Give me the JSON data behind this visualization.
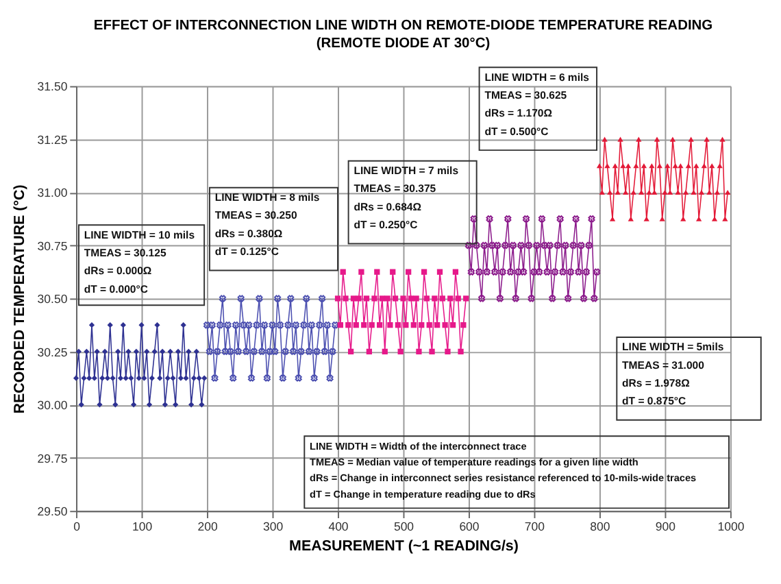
{
  "chart_data": {
    "type": "line",
    "title": "EFFECT OF INTERCONNECTION LINE WIDTH ON REMOTE-DIODE TEMPERATURE READING",
    "subtitle": "(REMOTE DIODE AT 30°C)",
    "xlabel": "MEASUREMENT (~1 READING/s)",
    "ylabel": "RECORDED TEMPERATURE (°C)",
    "xlim": [
      0,
      1000
    ],
    "xticks": [
      0,
      100,
      200,
      300,
      400,
      500,
      600,
      700,
      800,
      900,
      1000
    ],
    "ylim": [
      29.5,
      31.5
    ],
    "yticks": [
      {
        "value": 29.5,
        "label": "29.50"
      },
      {
        "value": 29.75,
        "label": "29.75"
      },
      {
        "value": 30,
        "label": "30.00"
      },
      {
        "value": 30.25,
        "label": "30.25"
      },
      {
        "value": 30.5,
        "label": "30.50"
      },
      {
        "value": 30.75,
        "label": "30.75"
      },
      {
        "value": 31,
        "label": "31.00"
      },
      {
        "value": 31.25,
        "label": "31.25"
      },
      {
        "value": 31.5,
        "label": "31.50"
      }
    ],
    "grid": true,
    "line_style": "solid",
    "series": [
      {
        "color": "#2e3192",
        "marker": "diamond",
        "x": [
          0,
          4,
          8,
          12,
          16,
          20,
          24,
          28,
          32,
          36,
          40,
          44,
          48,
          52,
          56,
          60,
          64,
          68,
          72,
          76,
          80,
          84,
          88,
          92,
          96,
          100,
          104,
          108,
          112,
          116,
          120,
          124,
          128,
          132,
          136,
          140,
          144,
          148,
          152,
          156,
          160,
          164,
          168,
          172,
          176,
          180,
          184,
          188,
          192,
          196
        ],
        "values": [
          30.125,
          30.25,
          30,
          30.125,
          30.25,
          30.125,
          30.375,
          30.125,
          30.25,
          30,
          30.125,
          30.25,
          30.125,
          30.375,
          30.125,
          30,
          30.25,
          30.125,
          30.375,
          30.125,
          30.25,
          30.125,
          30,
          30.25,
          30.125,
          30.375,
          30.125,
          30.25,
          30,
          30.125,
          30.25,
          30.375,
          30.125,
          30.25,
          30,
          30.125,
          30.25,
          30.125,
          30,
          30.25,
          30.125,
          30.375,
          30.125,
          30.25,
          30,
          30.125,
          30.25,
          30.125,
          30,
          30.125
        ]
      },
      {
        "color": "#4b4fb0",
        "marker": "cross",
        "x": [
          200,
          204,
          208,
          212,
          216,
          220,
          224,
          228,
          232,
          236,
          240,
          244,
          248,
          252,
          256,
          260,
          264,
          268,
          272,
          276,
          280,
          284,
          288,
          292,
          296,
          300,
          304,
          308,
          312,
          316,
          320,
          324,
          328,
          332,
          336,
          340,
          344,
          348,
          352,
          356,
          360,
          364,
          368,
          372,
          376,
          380,
          384,
          388,
          392,
          396
        ],
        "values": [
          30.375,
          30.25,
          30.375,
          30.125,
          30.25,
          30.375,
          30.5,
          30.25,
          30.375,
          30.25,
          30.125,
          30.375,
          30.25,
          30.5,
          30.375,
          30.25,
          30.375,
          30.125,
          30.25,
          30.375,
          30.5,
          30.25,
          30.375,
          30.125,
          30.25,
          30.375,
          30.25,
          30.5,
          30.375,
          30.125,
          30.25,
          30.375,
          30.5,
          30.25,
          30.375,
          30.125,
          30.25,
          30.375,
          30.5,
          30.25,
          30.375,
          30.125,
          30.25,
          30.375,
          30.5,
          30.25,
          30.375,
          30.125,
          30.25,
          30.375
        ]
      },
      {
        "color": "#e6198a",
        "marker": "square",
        "x": [
          400,
          404,
          408,
          412,
          416,
          420,
          424,
          428,
          432,
          436,
          440,
          444,
          448,
          452,
          456,
          460,
          464,
          468,
          472,
          476,
          480,
          484,
          488,
          492,
          496,
          500,
          504,
          508,
          512,
          516,
          520,
          524,
          528,
          532,
          536,
          540,
          544,
          548,
          552,
          556,
          560,
          564,
          568,
          572,
          576,
          580,
          584,
          588,
          592,
          596
        ],
        "values": [
          30.5,
          30.375,
          30.625,
          30.5,
          30.375,
          30.25,
          30.5,
          30.375,
          30.5,
          30.625,
          30.375,
          30.5,
          30.25,
          30.375,
          30.5,
          30.625,
          30.375,
          30.5,
          30.25,
          30.5,
          30.375,
          30.625,
          30.5,
          30.375,
          30.25,
          30.5,
          30.375,
          30.625,
          30.5,
          30.375,
          30.5,
          30.25,
          30.375,
          30.625,
          30.5,
          30.375,
          30.25,
          30.5,
          30.375,
          30.625,
          30.5,
          30.375,
          30.25,
          30.5,
          30.375,
          30.625,
          30.5,
          30.25,
          30.375,
          30.5
        ]
      },
      {
        "color": "#8b1a8b",
        "marker": "cross",
        "x": [
          600,
          604,
          608,
          612,
          616,
          620,
          624,
          628,
          632,
          636,
          640,
          644,
          648,
          652,
          656,
          660,
          664,
          668,
          672,
          676,
          680,
          684,
          688,
          692,
          696,
          700,
          704,
          708,
          712,
          716,
          720,
          724,
          728,
          732,
          736,
          740,
          744,
          748,
          752,
          756,
          760,
          764,
          768,
          772,
          776,
          780,
          784,
          788,
          792,
          796
        ],
        "values": [
          30.75,
          30.625,
          30.875,
          30.75,
          30.625,
          30.5,
          30.75,
          30.625,
          30.875,
          30.75,
          30.625,
          30.75,
          30.5,
          30.625,
          30.75,
          30.875,
          30.625,
          30.75,
          30.5,
          30.625,
          30.75,
          30.625,
          30.875,
          30.75,
          30.5,
          30.625,
          30.75,
          30.625,
          30.875,
          30.75,
          30.625,
          30.75,
          30.5,
          30.625,
          30.75,
          30.875,
          30.625,
          30.75,
          30.5,
          30.625,
          30.75,
          30.875,
          30.625,
          30.75,
          30.5,
          30.625,
          30.75,
          30.875,
          30.5,
          30.625
        ]
      },
      {
        "color": "#e31937",
        "marker": "triangle",
        "x": [
          800,
          804,
          808,
          812,
          816,
          820,
          824,
          828,
          832,
          836,
          840,
          844,
          848,
          852,
          856,
          860,
          864,
          868,
          872,
          876,
          880,
          884,
          888,
          892,
          896,
          900,
          904,
          908,
          912,
          916,
          920,
          924,
          928,
          932,
          936,
          940,
          944,
          948,
          952,
          956,
          960,
          964,
          968,
          972,
          976,
          980,
          984,
          988,
          992,
          996
        ],
        "values": [
          31.125,
          31,
          31.25,
          31.125,
          31,
          30.875,
          31.125,
          31,
          31.25,
          31.125,
          31,
          31.125,
          30.875,
          31,
          31.125,
          31.25,
          31,
          31.125,
          30.875,
          31,
          31.125,
          31,
          31.25,
          31.125,
          30.875,
          31,
          31.125,
          31,
          31.25,
          31.125,
          31,
          31.125,
          30.875,
          31,
          31.125,
          31.25,
          31,
          31.125,
          30.875,
          31,
          31.125,
          31.25,
          31,
          31.125,
          30.875,
          31,
          31.125,
          31.25,
          30.875,
          31
        ]
      }
    ],
    "annotations": [
      "LINE WIDTH = 10 mils\nTMEAS = 30.125\ndRs = 0.000Ω\ndT = 0.000°C",
      "LINE WIDTH = 8 mils\nTMEAS = 30.250\ndRs = 0.380Ω\ndT = 0.125°C",
      "LINE WIDTH = 7 mils\nTMEAS = 30.375\ndRs = 0.684Ω\ndT = 0.250°C",
      "LINE WIDTH = 6 mils\nTMEAS = 30.625\ndRs = 1.170Ω\ndT = 0.500°C",
      "LINE WIDTH = 5mils\nTMEAS = 31.000\ndRs = 1.978Ω\ndT = 0.875°C",
      "LINE WIDTH = Width of the interconnect trace\nTMEAS = Median value of temperature readings for a given line width\ndRs = Change in interconnect series resistance referenced to 10-mils-wide traces\ndT = Change in temperature reading due to dRs"
    ]
  }
}
